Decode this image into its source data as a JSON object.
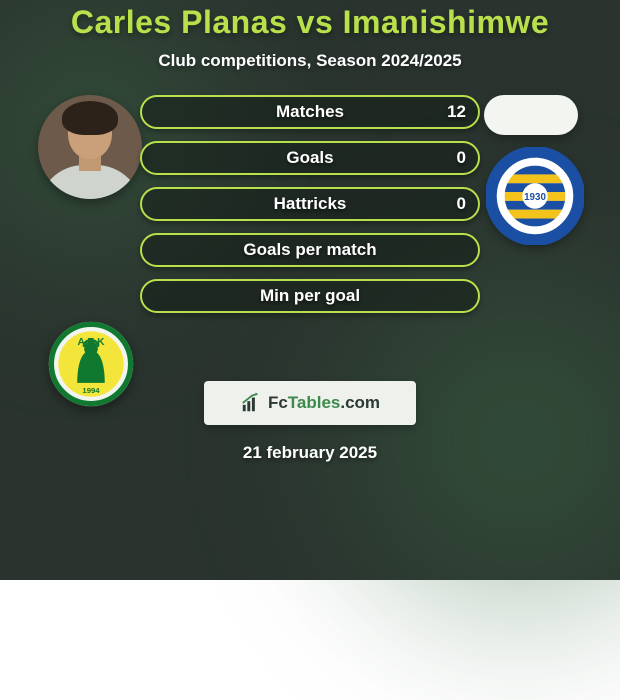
{
  "title": {
    "text": "Carles Planas vs Imanishimwe",
    "color": "#b7e04a",
    "fontsize": 32
  },
  "subtitle": {
    "text": "Club competitions, Season 2024/2025",
    "color": "#ffffff",
    "fontsize": 17
  },
  "date": {
    "text": "21 february 2025",
    "fontsize": 17
  },
  "accent_color": "#b7e04a",
  "bar_bg": "rgba(20,30,24,0.55)",
  "bar_label_color": "#ffffff",
  "bar_label_fontsize": 17,
  "bar_value_fontsize": 17,
  "bars": [
    {
      "label": "Matches",
      "left": "",
      "right": "12",
      "fill_pct": 0
    },
    {
      "label": "Goals",
      "left": "",
      "right": "0",
      "fill_pct": 0
    },
    {
      "label": "Hattricks",
      "left": "",
      "right": "0",
      "fill_pct": 0
    },
    {
      "label": "Goals per match",
      "left": "",
      "right": "",
      "fill_pct": 0
    },
    {
      "label": "Min per goal",
      "left": "",
      "right": "",
      "fill_pct": 0
    }
  ],
  "logo": {
    "text_fc": "Fc",
    "text_tables": "Tables",
    "text_com": ".com",
    "box_bg": "#eef1ec"
  },
  "left_club": {
    "outer": "#f2f4ef",
    "ring": "#0f7a2f",
    "inner": "#f4e53a",
    "figure": "#0f7a2f",
    "name_top": "A E K",
    "year": "1994"
  },
  "right_club": {
    "outer": "#ffffff",
    "ring": "#1b4fa3",
    "ring_text_color": "#ffffff",
    "stripes": [
      "#1b4fa3",
      "#f3c21b"
    ],
    "year": "1930"
  }
}
